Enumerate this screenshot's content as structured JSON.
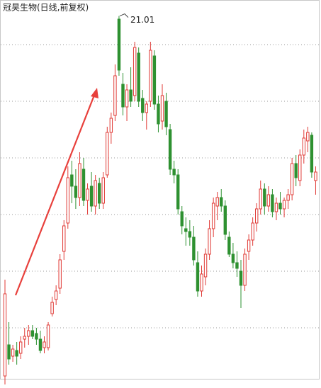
{
  "chart_data": {
    "type": "candlestick",
    "title": "冠昊生物(日线,前复权)",
    "annotation": "21.01",
    "ylim": [
      7.875,
      21.575
    ],
    "gridlines": [
      20,
      18,
      16,
      14,
      12,
      10
    ],
    "up_color": "#e03a36",
    "down_color": "#2e9131",
    "open": [
      8.3,
      9.4,
      9.0,
      9.2,
      9.1,
      9.6,
      9.7,
      9.9,
      9.8,
      9.6,
      9.3,
      9.3,
      10.5,
      11.0,
      11.4,
      12.7,
      13.7,
      15.4,
      15.0,
      14.6,
      15.6,
      14.5,
      15.0,
      14.3,
      15.1,
      14.4,
      15.4,
      16.9,
      17.5,
      20.9,
      18.6,
      17.8,
      18.4,
      18.2,
      19.7,
      18.1,
      17.6,
      18.0,
      19.6,
      17.9,
      17.3,
      18.0,
      17.0,
      15.6,
      15.4,
      14.1,
      13.5,
      13.4,
      13.2,
      12.3,
      11.3,
      11.8,
      12.6,
      13.5,
      14.3,
      14.6,
      14.3,
      13.2,
      12.6,
      12.3,
      12.0,
      11.5,
      12.7,
      13.1,
      13.7,
      14.2,
      14.9,
      14.3,
      14.7,
      14.1,
      14.4,
      14.2,
      14.5,
      14.7,
      15.8,
      15.2,
      16.1,
      16.6,
      16.8,
      15.2
    ],
    "high": [
      11.7,
      10.2,
      9.4,
      9.5,
      9.7,
      10.0,
      10.1,
      10.1,
      10.0,
      9.9,
      9.7,
      10.2,
      11.1,
      11.5,
      12.6,
      13.8,
      15.7,
      15.9,
      15.6,
      16.2,
      16.0,
      15.1,
      15.5,
      15.4,
      15.3,
      15.5,
      17.1,
      17.6,
      19.3,
      21.01,
      19.0,
      18.6,
      19.2,
      20.1,
      19.9,
      18.4,
      18.0,
      20.1,
      19.8,
      18.2,
      18.6,
      18.3,
      17.2,
      15.9,
      15.6,
      14.3,
      13.9,
      13.8,
      13.6,
      12.7,
      12.2,
      12.8,
      13.8,
      14.6,
      14.8,
      14.9,
      14.5,
      13.4,
      13.0,
      12.7,
      12.4,
      12.8,
      13.3,
      13.9,
      14.4,
      15.2,
      15.1,
      15.0,
      14.9,
      14.6,
      14.8,
      14.6,
      14.9,
      16.0,
      16.1,
      16.3,
      17.0,
      17.1,
      16.9,
      15.7
    ],
    "low": [
      8.0,
      8.7,
      8.8,
      8.7,
      8.9,
      9.3,
      9.4,
      9.6,
      9.4,
      9.1,
      9.1,
      9.2,
      10.4,
      10.8,
      11.2,
      12.4,
      13.5,
      14.4,
      14.2,
      14.3,
      14.3,
      14.0,
      14.1,
      14.0,
      14.2,
      14.2,
      15.3,
      16.5,
      17.3,
      18.9,
      17.5,
      17.3,
      17.8,
      18.0,
      17.8,
      17.3,
      17.0,
      17.8,
      17.7,
      16.9,
      17.0,
      16.8,
      15.4,
      15.1,
      14.0,
      13.3,
      12.9,
      12.9,
      12.2,
      11.1,
      11.1,
      11.5,
      12.4,
      13.2,
      13.8,
      14.1,
      13.1,
      12.5,
      12.1,
      11.8,
      10.7,
      11.3,
      12.4,
      12.9,
      13.4,
      14.0,
      14.0,
      14.1,
      13.9,
      13.8,
      14.0,
      13.9,
      14.2,
      14.5,
      15.0,
      15.0,
      15.8,
      16.2,
      15.3,
      14.7
    ],
    "close": [
      11.2,
      8.9,
      9.25,
      9.0,
      9.5,
      9.7,
      9.9,
      9.7,
      9.6,
      9.2,
      9.5,
      10.1,
      10.9,
      11.3,
      12.4,
      13.6,
      15.3,
      15.0,
      14.6,
      15.8,
      14.5,
      14.9,
      14.3,
      15.2,
      14.4,
      15.3,
      16.9,
      17.4,
      18.9,
      19.1,
      17.8,
      18.4,
      18.0,
      19.9,
      18.0,
      17.6,
      17.9,
      19.8,
      17.9,
      17.2,
      18.2,
      17.1,
      15.6,
      15.4,
      14.2,
      13.6,
      13.4,
      13.2,
      12.4,
      11.3,
      11.9,
      12.6,
      13.5,
      14.4,
      14.6,
      14.3,
      13.3,
      12.6,
      12.3,
      12.1,
      11.5,
      12.6,
      13.1,
      13.7,
      14.2,
      14.9,
      14.3,
      14.7,
      14.1,
      14.4,
      14.2,
      14.5,
      14.7,
      15.8,
      15.3,
      16.1,
      16.7,
      16.9,
      15.5,
      15.5
    ]
  }
}
